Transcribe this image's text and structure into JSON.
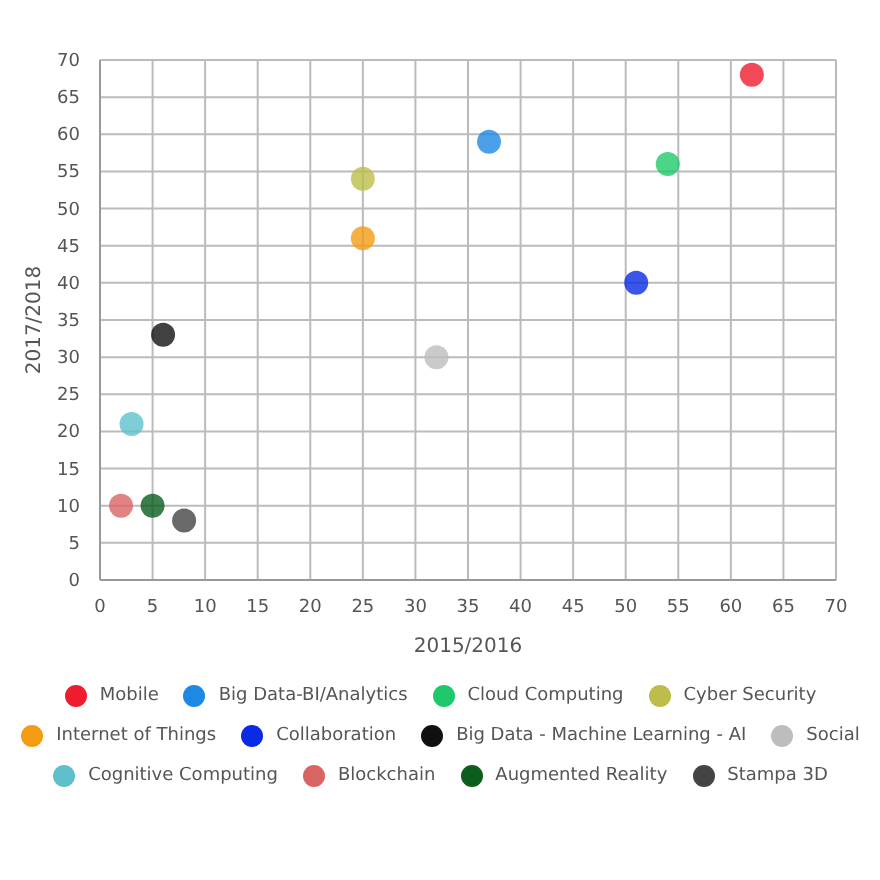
{
  "chart_data": {
    "type": "scatter",
    "xlabel": "2015/2016",
    "ylabel": "2017/2018",
    "xlim": [
      0,
      70
    ],
    "ylim": [
      0,
      70
    ],
    "xticks": [
      0,
      5,
      10,
      15,
      20,
      25,
      30,
      35,
      40,
      45,
      50,
      55,
      60,
      65,
      70
    ],
    "yticks": [
      0,
      5,
      10,
      15,
      20,
      25,
      30,
      35,
      40,
      45,
      50,
      55,
      60,
      65,
      70
    ],
    "grid": true,
    "legend": "bottom",
    "marker": "circle",
    "series": [
      {
        "name": "Mobile",
        "color": "#ee1c2e",
        "x": [
          62
        ],
        "values": [
          68
        ]
      },
      {
        "name": "Big Data-BI/Analytics",
        "color": "#1e88e5",
        "x": [
          37
        ],
        "values": [
          59
        ]
      },
      {
        "name": "Cloud Computing",
        "color": "#1fc96b",
        "x": [
          54
        ],
        "values": [
          56
        ]
      },
      {
        "name": "Cyber Security",
        "color": "#bdbd4a",
        "x": [
          25
        ],
        "values": [
          54
        ]
      },
      {
        "name": "Internet of Things",
        "color": "#f39c12",
        "x": [
          25
        ],
        "values": [
          46
        ]
      },
      {
        "name": "Collaboration",
        "color": "#0a2ae6",
        "x": [
          51
        ],
        "values": [
          40
        ]
      },
      {
        "name": "Big Data - Machine Learning - AI",
        "color": "#111111",
        "x": [
          6
        ],
        "values": [
          33
        ]
      },
      {
        "name": "Social",
        "color": "#bdbdbd",
        "x": [
          32
        ],
        "values": [
          30
        ]
      },
      {
        "name": "Cognitive Computing",
        "color": "#5fc0cc",
        "x": [
          3
        ],
        "values": [
          21
        ]
      },
      {
        "name": "Blockchain",
        "color": "#d96464",
        "x": [
          2
        ],
        "values": [
          10
        ]
      },
      {
        "name": "Augmented Reality",
        "color": "#0b5e1e",
        "x": [
          5
        ],
        "values": [
          10
        ]
      },
      {
        "name": "Stampa 3D",
        "color": "#444444",
        "x": [
          8
        ],
        "values": [
          8
        ]
      }
    ]
  }
}
